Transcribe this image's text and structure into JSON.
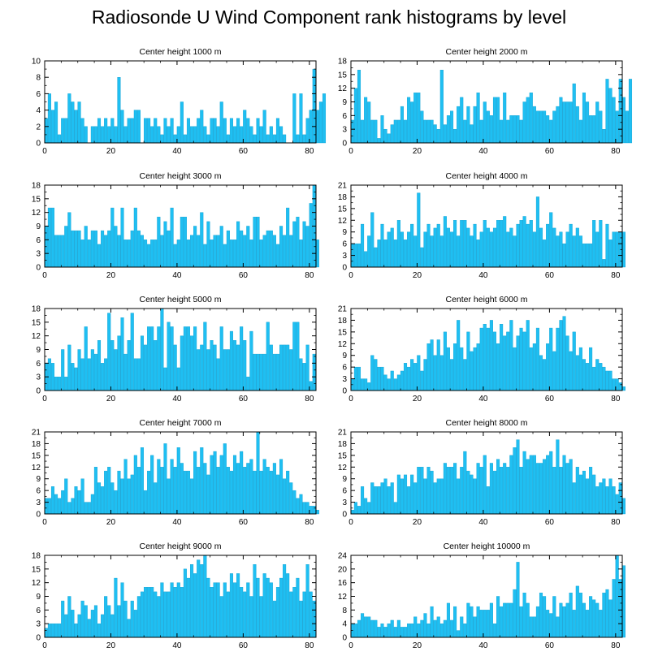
{
  "title": "Radiosonde U Wind Component rank histograms by level",
  "colors": {
    "bar_fill": "#1fbff2",
    "bar_stroke": "#0f9fd0",
    "axis": "#000000",
    "background": "#ffffff"
  },
  "chart_data": [
    {
      "type": "bar",
      "title": "Center height 1000 m",
      "xlabel": "",
      "ylabel": "",
      "xlim": [
        0,
        82
      ],
      "ylim": [
        0,
        10
      ],
      "xticks": [
        0,
        20,
        40,
        60,
        80
      ],
      "yticks": [
        0,
        2,
        4,
        6,
        8,
        10
      ],
      "x_start": 0,
      "values": [
        3,
        6,
        4,
        5,
        1,
        3,
        3,
        6,
        5,
        4,
        5,
        3,
        2,
        0,
        2,
        2,
        3,
        2,
        3,
        2,
        3,
        2,
        8,
        4,
        2,
        3,
        3,
        4,
        4,
        0,
        3,
        3,
        2,
        3,
        2,
        1,
        3,
        2,
        3,
        1,
        2,
        5,
        1,
        3,
        2,
        2,
        3,
        4,
        2,
        1,
        3,
        3,
        2,
        5,
        3,
        1,
        3,
        2,
        3,
        2,
        4,
        3,
        2,
        1,
        3,
        2,
        4,
        1,
        2,
        1,
        3,
        2,
        1,
        0,
        0,
        6,
        1,
        6,
        1,
        3,
        4,
        9,
        4,
        5,
        6
      ]
    },
    {
      "type": "bar",
      "title": "Center height 2000 m",
      "xlabel": "",
      "ylabel": "",
      "xlim": [
        0,
        82
      ],
      "ylim": [
        0,
        18
      ],
      "xticks": [
        0,
        20,
        40,
        60,
        80
      ],
      "yticks": [
        0,
        3,
        6,
        9,
        12,
        15,
        18
      ],
      "x_start": 0,
      "values": [
        5,
        12,
        16,
        5,
        10,
        9,
        5,
        5,
        1,
        6,
        3,
        2,
        4,
        5,
        5,
        8,
        5,
        10,
        9,
        11,
        11,
        7,
        5,
        5,
        5,
        4,
        3,
        16,
        4,
        6,
        7,
        3,
        8,
        10,
        5,
        8,
        4,
        8,
        11,
        5,
        9,
        7,
        6,
        10,
        10,
        5,
        11,
        5,
        6,
        6,
        6,
        5,
        9,
        10,
        11,
        8,
        7,
        7,
        7,
        6,
        5,
        7,
        8,
        10,
        9,
        9,
        9,
        13,
        8,
        5,
        11,
        9,
        6,
        6,
        9,
        7,
        3,
        14,
        12,
        10,
        7,
        14,
        10,
        7,
        14
      ]
    },
    {
      "type": "bar",
      "title": "Center height 3000 m",
      "xlabel": "",
      "ylabel": "",
      "xlim": [
        0,
        82
      ],
      "ylim": [
        0,
        18
      ],
      "xticks": [
        0,
        20,
        40,
        60,
        80
      ],
      "yticks": [
        0,
        3,
        6,
        9,
        12,
        15,
        18
      ],
      "x_start": 0,
      "values": [
        9,
        13,
        13,
        7,
        7,
        7,
        9,
        12,
        8,
        8,
        8,
        6,
        9,
        6,
        8,
        8,
        5,
        8,
        7,
        8,
        13,
        9,
        7,
        13,
        6,
        6,
        8,
        13,
        8,
        7,
        6,
        5,
        6,
        6,
        11,
        7,
        10,
        8,
        13,
        5,
        6,
        11,
        11,
        6,
        7,
        9,
        7,
        12,
        5,
        10,
        6,
        7,
        7,
        9,
        5,
        8,
        6,
        6,
        10,
        8,
        7,
        9,
        6,
        11,
        11,
        6,
        7,
        8,
        8,
        7,
        5,
        9,
        7,
        13,
        7,
        10,
        11,
        6,
        10,
        9,
        14,
        18,
        6
      ]
    },
    {
      "type": "bar",
      "title": "Center height 4000 m",
      "xlabel": "",
      "ylabel": "",
      "xlim": [
        0,
        82
      ],
      "ylim": [
        0,
        21
      ],
      "xticks": [
        0,
        20,
        40,
        60,
        80
      ],
      "yticks": [
        0,
        3,
        6,
        9,
        12,
        15,
        18,
        21
      ],
      "x_start": 0,
      "values": [
        6,
        6,
        6,
        11,
        4,
        8,
        14,
        5,
        7,
        11,
        7,
        9,
        10,
        7,
        12,
        9,
        7,
        9,
        11,
        8,
        19,
        5,
        9,
        11,
        8,
        10,
        11,
        8,
        13,
        10,
        9,
        12,
        8,
        12,
        12,
        10,
        8,
        11,
        7,
        9,
        12,
        10,
        9,
        10,
        12,
        12,
        13,
        9,
        10,
        8,
        11,
        12,
        13,
        11,
        12,
        9,
        18,
        10,
        7,
        11,
        14,
        10,
        8,
        9,
        6,
        9,
        11,
        8,
        10,
        8,
        6,
        6,
        6,
        12,
        9,
        12,
        2,
        11,
        7,
        9,
        9,
        9,
        9
      ]
    },
    {
      "type": "bar",
      "title": "Center height 5000 m",
      "xlabel": "",
      "ylabel": "",
      "xlim": [
        0,
        82
      ],
      "ylim": [
        0,
        18
      ],
      "xticks": [
        0,
        20,
        40,
        60,
        80
      ],
      "yticks": [
        0,
        3,
        6,
        9,
        12,
        15,
        18
      ],
      "x_start": 0,
      "values": [
        6,
        7,
        6,
        3,
        3,
        9,
        3,
        10,
        6,
        5,
        9,
        7,
        14,
        7,
        9,
        8,
        11,
        6,
        7,
        17,
        11,
        9,
        12,
        16,
        8,
        11,
        17,
        7,
        7,
        12,
        10,
        14,
        14,
        11,
        14,
        18,
        5,
        15,
        14,
        10,
        5,
        12,
        14,
        14,
        12,
        14,
        9,
        10,
        15,
        9,
        11,
        10,
        7,
        14,
        9,
        9,
        13,
        11,
        10,
        14,
        11,
        3,
        13,
        8,
        8,
        8,
        8,
        15,
        10,
        8,
        8,
        10,
        10,
        10,
        9,
        15,
        15,
        7,
        6,
        10,
        2,
        8
      ]
    },
    {
      "type": "bar",
      "title": "Center height 6000 m",
      "xlabel": "",
      "ylabel": "",
      "xlim": [
        0,
        82
      ],
      "ylim": [
        0,
        21
      ],
      "xticks": [
        0,
        20,
        40,
        60,
        80
      ],
      "yticks": [
        0,
        3,
        6,
        9,
        12,
        15,
        18,
        21
      ],
      "x_start": 0,
      "values": [
        3,
        6,
        6,
        3,
        3,
        2,
        9,
        8,
        6,
        6,
        4,
        3,
        5,
        3,
        4,
        5,
        7,
        6,
        8,
        7,
        9,
        5,
        8,
        12,
        13,
        9,
        13,
        9,
        15,
        11,
        8,
        12,
        18,
        11,
        8,
        15,
        10,
        11,
        12,
        16,
        17,
        16,
        18,
        15,
        12,
        17,
        14,
        15,
        18,
        11,
        14,
        16,
        15,
        18,
        11,
        12,
        16,
        9,
        8,
        12,
        16,
        10,
        16,
        18,
        19,
        14,
        10,
        15,
        9,
        11,
        8,
        7,
        11,
        6,
        8,
        7,
        6,
        5,
        5,
        3,
        3,
        2,
        1
      ]
    },
    {
      "type": "bar",
      "title": "Center height 7000 m",
      "xlabel": "",
      "ylabel": "",
      "xlim": [
        0,
        82
      ],
      "ylim": [
        0,
        21
      ],
      "xticks": [
        0,
        20,
        40,
        60,
        80
      ],
      "yticks": [
        0,
        3,
        6,
        9,
        12,
        15,
        18,
        21
      ],
      "x_start": 0,
      "values": [
        4,
        4,
        7,
        5,
        4,
        6,
        9,
        3,
        4,
        7,
        6,
        9,
        3,
        3,
        5,
        12,
        8,
        7,
        11,
        12,
        8,
        6,
        11,
        9,
        14,
        9,
        10,
        15,
        12,
        17,
        6,
        11,
        15,
        8,
        14,
        12,
        18,
        9,
        14,
        12,
        17,
        13,
        11,
        11,
        9,
        16,
        12,
        17,
        13,
        10,
        15,
        16,
        12,
        15,
        18,
        12,
        11,
        15,
        13,
        16,
        12,
        13,
        14,
        11,
        21,
        11,
        14,
        12,
        11,
        13,
        10,
        14,
        9,
        11,
        8,
        6,
        4,
        5,
        3,
        3,
        2,
        2,
        1
      ]
    },
    {
      "type": "bar",
      "title": "Center height 8000 m",
      "xlabel": "",
      "ylabel": "",
      "xlim": [
        0,
        82
      ],
      "ylim": [
        0,
        21
      ],
      "xticks": [
        0,
        20,
        40,
        60,
        80
      ],
      "yticks": [
        0,
        3,
        6,
        9,
        12,
        15,
        18,
        21
      ],
      "x_start": 0,
      "values": [
        1,
        3,
        2,
        7,
        4,
        3,
        8,
        7,
        7,
        8,
        9,
        7,
        8,
        3,
        10,
        9,
        10,
        7,
        10,
        8,
        12,
        12,
        9,
        12,
        11,
        8,
        9,
        9,
        13,
        12,
        12,
        13,
        9,
        12,
        16,
        11,
        10,
        9,
        13,
        12,
        15,
        7,
        13,
        11,
        14,
        12,
        13,
        12,
        15,
        17,
        19,
        12,
        16,
        14,
        15,
        15,
        13,
        13,
        14,
        15,
        16,
        12,
        19,
        12,
        15,
        13,
        14,
        8,
        12,
        10,
        11,
        9,
        12,
        10,
        7,
        8,
        9,
        7,
        9,
        7,
        5,
        8,
        4
      ]
    },
    {
      "type": "bar",
      "title": "Center height 9000 m",
      "xlabel": "",
      "ylabel": "",
      "xlim": [
        0,
        82
      ],
      "ylim": [
        0,
        18
      ],
      "xticks": [
        0,
        20,
        40,
        60,
        80
      ],
      "yticks": [
        0,
        3,
        6,
        9,
        12,
        15,
        18
      ],
      "x_start": 0,
      "values": [
        2,
        3,
        3,
        3,
        3,
        8,
        5,
        9,
        6,
        3,
        5,
        8,
        7,
        4,
        6,
        7,
        3,
        5,
        9,
        7,
        5,
        13,
        7,
        12,
        8,
        4,
        8,
        6,
        9,
        10,
        11,
        11,
        11,
        10,
        9,
        12,
        10,
        10,
        12,
        11,
        12,
        11,
        15,
        13,
        16,
        14,
        17,
        16,
        18,
        13,
        11,
        12,
        12,
        9,
        12,
        10,
        14,
        12,
        14,
        11,
        10,
        12,
        9,
        16,
        13,
        9,
        14,
        13,
        12,
        8,
        11,
        13,
        16,
        14,
        10,
        11,
        13,
        8,
        10,
        16,
        10,
        8
      ]
    },
    {
      "type": "bar",
      "title": "Center height 10000 m",
      "xlabel": "",
      "ylabel": "",
      "xlim": [
        0,
        82
      ],
      "ylim": [
        0,
        24
      ],
      "xticks": [
        0,
        20,
        40,
        60,
        80
      ],
      "yticks": [
        0,
        4,
        8,
        12,
        16,
        20,
        24
      ],
      "x_start": 0,
      "values": [
        4,
        4,
        5,
        7,
        6,
        6,
        5,
        5,
        3,
        4,
        3,
        4,
        5,
        3,
        5,
        3,
        3,
        4,
        4,
        6,
        4,
        5,
        7,
        4,
        9,
        5,
        6,
        4,
        5,
        10,
        5,
        9,
        2,
        6,
        4,
        10,
        9,
        6,
        9,
        8,
        8,
        8,
        10,
        4,
        12,
        9,
        10,
        10,
        10,
        14,
        22,
        9,
        13,
        10,
        6,
        6,
        9,
        13,
        12,
        8,
        7,
        12,
        6,
        10,
        9,
        10,
        13,
        8,
        15,
        13,
        10,
        8,
        12,
        11,
        10,
        8,
        13,
        14,
        11,
        17,
        24,
        17,
        21
      ]
    }
  ]
}
